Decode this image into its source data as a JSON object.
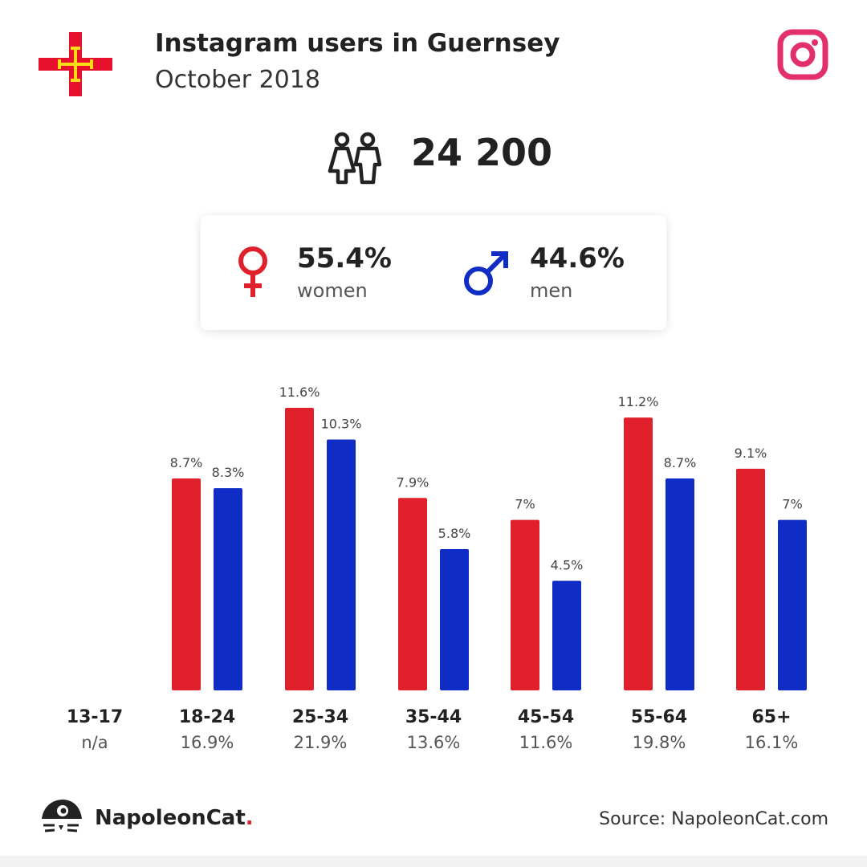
{
  "header": {
    "title": "Instagram users in Guernsey",
    "subtitle": "October 2018",
    "flag_icon": "guernsey-flag-icon",
    "platform_icon": "instagram-icon"
  },
  "total": {
    "value": "24 200",
    "icon": "people-icon"
  },
  "gender": {
    "female": {
      "pct": "55.4%",
      "label": "women",
      "icon": "female-symbol-icon"
    },
    "male": {
      "pct": "44.6%",
      "label": "men",
      "icon": "male-symbol-icon"
    }
  },
  "colors": {
    "women": "#e0202a",
    "men": "#0f2cc4",
    "accent": "#e1306c"
  },
  "chart_data": {
    "type": "bar",
    "categories": [
      "13-17",
      "18-24",
      "25-34",
      "35-44",
      "45-54",
      "55-64",
      "65+"
    ],
    "category_totals": [
      "n/a",
      "16.9%",
      "21.9%",
      "13.6%",
      "11.6%",
      "19.8%",
      "16.1%"
    ],
    "series": [
      {
        "color": "#e0202a",
        "values": [
          null,
          8.7,
          11.6,
          7.9,
          7.0,
          11.2,
          9.1
        ],
        "labels": [
          "",
          "8.7%",
          "11.6%",
          "7.9%",
          "7%",
          "11.2%",
          "9.1%"
        ]
      },
      {
        "color": "#0f2cc4",
        "values": [
          null,
          8.3,
          10.3,
          5.8,
          4.5,
          8.7,
          7.0
        ],
        "labels": [
          "",
          "8.3%",
          "10.3%",
          "5.8%",
          "4.5%",
          "8.7%",
          "7%"
        ]
      }
    ],
    "ylim": [
      0,
      11.6
    ],
    "grid": false
  },
  "footer": {
    "brand_name": "NapoleonCat",
    "brand_dot": ".",
    "brand_icon": "napoleoncat-logo-icon",
    "source": "Source: NapoleonCat.com"
  }
}
